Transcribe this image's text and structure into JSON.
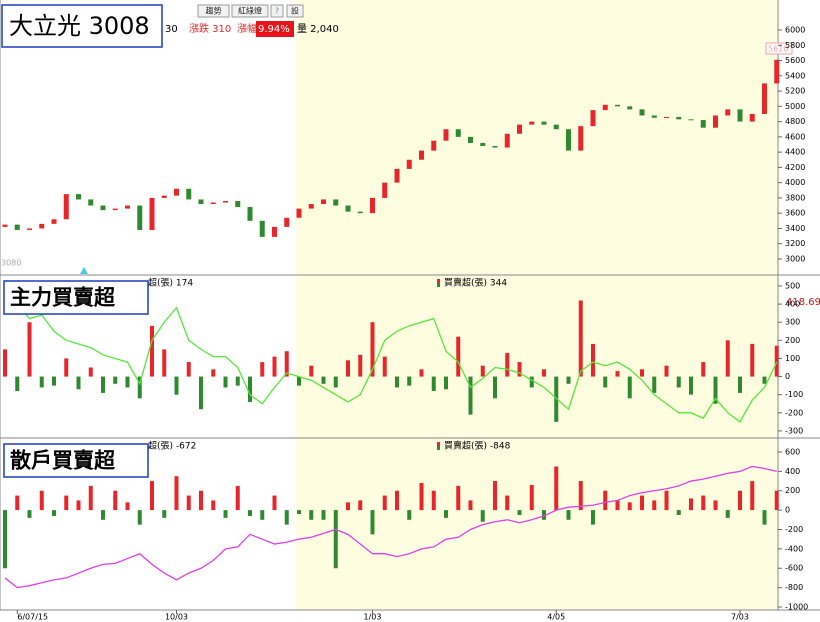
{
  "toolbar": {
    "buttons": [
      "趨勢",
      "紅綠燈",
      "?",
      "設"
    ],
    "price_tail": "30",
    "change": "漲跌 310",
    "pct_label": "漲幅",
    "pct": "9.94%",
    "volume": "量 2,040"
  },
  "chart_data": [
    {
      "type": "candlestick",
      "title": "大立光 3008",
      "open": [
        3420,
        3450,
        3380,
        3400,
        3460,
        3520,
        3850,
        3780,
        3700,
        3640,
        3660,
        3700,
        3380,
        3800,
        3830,
        3920,
        3780,
        3720,
        3740,
        3760,
        3680,
        3500,
        3290,
        3420,
        3540,
        3660,
        3720,
        3780,
        3700,
        3620,
        3600,
        3800,
        4000,
        4180,
        4300,
        4420,
        4550,
        4700,
        4600,
        4520,
        4480,
        4460,
        4640,
        4760,
        4800,
        4760,
        4700,
        4420,
        4740,
        4950,
        5020,
        5000,
        4960,
        4880,
        4850,
        4860,
        4830,
        4820,
        4720,
        4880,
        4960,
        4800,
        4900,
        5300
      ],
      "close": [
        3450,
        3380,
        3400,
        3460,
        3520,
        3850,
        3780,
        3700,
        3640,
        3660,
        3700,
        3380,
        3800,
        3830,
        3920,
        3780,
        3720,
        3740,
        3760,
        3680,
        3500,
        3290,
        3420,
        3540,
        3660,
        3720,
        3780,
        3700,
        3620,
        3600,
        3800,
        4000,
        4180,
        4300,
        4420,
        4550,
        4700,
        4600,
        4520,
        4480,
        4460,
        4640,
        4760,
        4800,
        4760,
        4700,
        4420,
        4740,
        4950,
        5020,
        5000,
        4960,
        4880,
        4850,
        4860,
        4830,
        4820,
        4720,
        4880,
        4960,
        4800,
        4900,
        5300,
        5610
      ],
      "up_color": "#e8262a",
      "down_color": "#2f8a2f",
      "ylim": [
        2790,
        6393
      ],
      "yticks": [
        3000,
        3200,
        3400,
        3600,
        3800,
        4000,
        4200,
        4400,
        4600,
        4800,
        5000,
        5200,
        5400,
        5600,
        5800,
        6000
      ],
      "annotations": [
        "5610",
        "3080"
      ],
      "xtick_labels": [
        {
          "value": 1,
          "label": "6/07/15"
        },
        {
          "value": 14,
          "label": "10/03"
        },
        {
          "value": 30,
          "label": "1/03"
        },
        {
          "value": 45,
          "label": "4/05"
        },
        {
          "value": 60,
          "label": "7/03"
        }
      ]
    },
    {
      "type": "bar_line",
      "title": "主力買賣超",
      "legend": [
        "超(張) 174",
        "買賣超(張) 344"
      ],
      "annotation": "418.69",
      "series": [
        {
          "up_color": "#e8262a",
          "down_color": "#2f8a2f",
          "values": [
            150,
            -80,
            300,
            -60,
            -50,
            100,
            -70,
            50,
            -90,
            -40,
            -60,
            -120,
            280,
            150,
            -100,
            80,
            -180,
            40,
            -60,
            -50,
            -140,
            80,
            110,
            140,
            -50,
            60,
            -40,
            -60,
            90,
            120,
            300,
            110,
            -60,
            -50,
            40,
            -80,
            -70,
            220,
            -210,
            60,
            -120,
            130,
            80,
            -60,
            40,
            -250,
            -40,
            420,
            180,
            -60,
            30,
            -120,
            40,
            -90,
            60,
            -60,
            -100,
            80,
            -150,
            200,
            -90,
            180,
            -40,
            170
          ]
        },
        {
          "color": "#55e83a",
          "values": [
            380,
            400,
            320,
            340,
            250,
            200,
            180,
            160,
            120,
            100,
            80,
            -40,
            200,
            300,
            380,
            200,
            150,
            110,
            110,
            50,
            -100,
            -150,
            -60,
            20,
            0,
            -20,
            -60,
            -100,
            -140,
            -100,
            40,
            200,
            250,
            280,
            300,
            320,
            140,
            80,
            -60,
            -10,
            50,
            40,
            20,
            -20,
            -60,
            -120,
            -180,
            30,
            80,
            60,
            80,
            40,
            -20,
            -100,
            -150,
            -200,
            -200,
            -230,
            -120,
            -200,
            -250,
            -130,
            -60,
            80
          ]
        }
      ],
      "ylim": [
        -339,
        555
      ],
      "yticks": [
        -300,
        -200,
        -100,
        0,
        100,
        200,
        300,
        400,
        500
      ]
    },
    {
      "type": "bar_line",
      "title": "散戶買賣超",
      "legend": [
        "超(張) -672",
        "買賣超(張) -848"
      ],
      "series": [
        {
          "up_color": "#e8262a",
          "down_color": "#2f8a2f",
          "values": [
            -600,
            150,
            -80,
            200,
            -60,
            150,
            100,
            250,
            -100,
            200,
            80,
            -150,
            300,
            -80,
            350,
            150,
            200,
            100,
            -80,
            250,
            -60,
            -100,
            150,
            -150,
            -40,
            -100,
            -100,
            -600,
            80,
            100,
            -250,
            150,
            200,
            -100,
            280,
            200,
            -80,
            250,
            100,
            -120,
            300,
            150,
            -50,
            260,
            -100,
            450,
            -100,
            300,
            -150,
            200,
            100,
            80,
            150,
            100,
            200,
            -50,
            120,
            150,
            100,
            -80,
            200,
            300,
            -150,
            200
          ]
        },
        {
          "color": "#e040e8",
          "values": [
            -700,
            -800,
            -780,
            -750,
            -720,
            -700,
            -650,
            -600,
            -560,
            -550,
            -500,
            -450,
            -560,
            -650,
            -720,
            -650,
            -600,
            -520,
            -400,
            -380,
            -250,
            -300,
            -350,
            -330,
            -300,
            -280,
            -240,
            -200,
            -250,
            -350,
            -450,
            -450,
            -480,
            -450,
            -400,
            -380,
            -300,
            -280,
            -200,
            -150,
            -120,
            -100,
            -130,
            -100,
            -60,
            0,
            30,
            40,
            50,
            80,
            100,
            150,
            180,
            200,
            220,
            250,
            300,
            320,
            350,
            380,
            400,
            450,
            430,
            400
          ]
        }
      ],
      "ylim": [
        -1031,
        734
      ],
      "yticks": [
        -1000,
        -800,
        -600,
        -400,
        -200,
        0,
        200,
        400,
        600
      ]
    }
  ]
}
